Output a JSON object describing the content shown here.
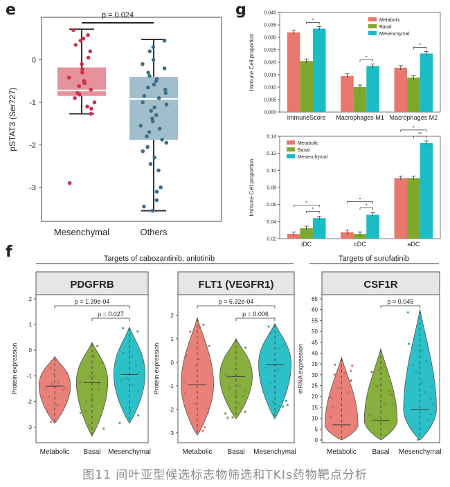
{
  "panels": {
    "e": "e",
    "g": "g",
    "f": "f"
  },
  "caption": "图11 间叶亚型候选标志物筛选和TKIs药物靶点分析",
  "colors": {
    "metabolic": "#e8776d",
    "basal": "#7ea82d",
    "mesenchymal": "#1bbcc4",
    "mes_box": "#e3868f",
    "others_box": "#96b7c6",
    "mes_pt": "#c8334a",
    "others_pt": "#3c6e8c"
  },
  "chart_data": [
    {
      "id": "e",
      "type": "box",
      "ylabel": "pSTAT3 (Ser727)",
      "categories": [
        "Mesenchymal",
        "Others"
      ],
      "ylim": [
        -3.8,
        1.0
      ],
      "yticks": [
        0,
        -1,
        -2,
        -3
      ],
      "boxes": [
        {
          "name": "Mesenchymal",
          "q1": -0.85,
          "median": -0.72,
          "q3": -0.18,
          "whisker_low": -1.27,
          "whisker_high": 0.72,
          "points": [
            0.7,
            0.58,
            0.5,
            0.45,
            0.35,
            0.2,
            0.05,
            -0.1,
            -0.22,
            -0.3,
            -0.42,
            -0.5,
            -0.55,
            -0.62,
            -0.7,
            -0.78,
            -0.82,
            -0.9,
            -1.0,
            -1.1,
            -1.15,
            -1.27,
            -2.9
          ]
        },
        {
          "name": "Others",
          "q1": -1.88,
          "median": -0.92,
          "q3": -0.4,
          "whisker_low": -3.55,
          "whisker_high": 0.48,
          "points": [
            0.45,
            0.3,
            0.2,
            0.0,
            -0.1,
            -0.2,
            -0.3,
            -0.38,
            -0.45,
            -0.5,
            -0.58,
            -0.65,
            -0.7,
            -0.78,
            -0.85,
            -0.9,
            -1.0,
            -1.05,
            -1.12,
            -1.2,
            -1.3,
            -1.38,
            -1.45,
            -1.55,
            -1.62,
            -1.7,
            -1.8,
            -1.88,
            -1.95,
            -2.05,
            -2.15,
            -2.3,
            -2.45,
            -2.6,
            -3.0,
            -3.1,
            -3.3,
            -3.45,
            -3.55
          ]
        }
      ],
      "annotation": "p = 0.024"
    },
    {
      "id": "g-top",
      "type": "bar",
      "ylabel": "Immune Cell proportion",
      "categories": [
        "ImmuneScore",
        "Macrophages M1",
        "Macrophages M2"
      ],
      "ylim": [
        0,
        0.04
      ],
      "yticks": [
        "0.000",
        "0.005",
        "0.010",
        "0.015",
        "0.020",
        "0.025",
        "0.030",
        "0.035",
        "0.040"
      ],
      "series": [
        {
          "name": "Metabolic",
          "values": [
            0.032,
            0.0145,
            0.0178
          ]
        },
        {
          "name": "Basal",
          "values": [
            0.0205,
            0.01,
            0.0138
          ]
        },
        {
          "name": "Mesenchymal",
          "values": [
            0.0335,
            0.0185,
            0.0235
          ]
        }
      ],
      "sig": [
        "*",
        "*",
        "*"
      ]
    },
    {
      "id": "g-bottom",
      "type": "bar",
      "ylabel": "Immune Cell proportion",
      "categories": [
        "iDC",
        "cDC",
        "aDC"
      ],
      "ylim": [
        0.02,
        0.14
      ],
      "yticks": [
        "0.02",
        "0.04",
        "0.06",
        "0.08",
        "0.10",
        "0.12",
        "0.14"
      ],
      "series": [
        {
          "name": "Metabolic",
          "values": [
            0.0255,
            0.0275,
            0.091
          ]
        },
        {
          "name": "Basal",
          "values": [
            0.0322,
            0.0255,
            0.091
          ]
        },
        {
          "name": "Mesenchymal",
          "values": [
            0.044,
            0.048,
            0.132
          ]
        }
      ],
      "sig": [
        "*",
        "*",
        "*",
        "*",
        "*",
        "**"
      ]
    },
    {
      "id": "f",
      "type": "violin",
      "group_title_left": "Targets of cabozantinib, anlotinib",
      "group_title_right": "Targets of surufatinib",
      "panels": [
        {
          "title": "PDGFRB",
          "ylabel": "Protein expression",
          "ylim": [
            -3.5,
            2.0
          ],
          "yticks": [
            "2",
            "1",
            "0",
            "-1",
            "-2",
            "-3"
          ],
          "categories": [
            "Metabolic",
            "Basal",
            "Mesenchymal"
          ],
          "p_top": "p = 1.39e-04",
          "p_bottom": "p = 0.027",
          "violins": [
            {
              "min": -2.85,
              "max": -0.25,
              "median": -1.4,
              "q1": -1.85,
              "q3": -0.9
            },
            {
              "min": -3.35,
              "max": 0.3,
              "median": -1.25,
              "q1": -1.8,
              "q3": -0.6
            },
            {
              "min": -2.85,
              "max": 0.9,
              "median": -0.95,
              "q1": -1.45,
              "q3": -0.4
            }
          ]
        },
        {
          "title": "FLT1 (VEGFR1)",
          "ylabel": "Protein expression",
          "ylim": [
            -3.3,
            2.7
          ],
          "yticks": [
            "2",
            "1",
            "0",
            "-1",
            "-2",
            "-3"
          ],
          "categories": [
            "Metabolic",
            "Basal",
            "Mesenchymal"
          ],
          "p_top": "p = 6.32e-04",
          "p_bottom": "p = 0.006",
          "violins": [
            {
              "min": -3.1,
              "max": 1.9,
              "median": -0.95,
              "q1": -1.6,
              "q3": -0.3
            },
            {
              "min": -2.4,
              "max": 1.0,
              "median": -0.6,
              "q1": -1.1,
              "q3": -0.1
            },
            {
              "min": -2.4,
              "max": 1.65,
              "median": -0.1,
              "q1": -0.6,
              "q3": 0.4
            }
          ]
        },
        {
          "title": "CSF1R",
          "ylabel": "mRNA expression",
          "ylim": [
            0,
            65
          ],
          "yticks": [
            "65",
            "60",
            "55",
            "50",
            "45",
            "40",
            "35",
            "30",
            "25",
            "20",
            "15",
            "10",
            "5",
            "0"
          ],
          "categories": [
            "Metabolic",
            "Basal",
            "Mesenchymal"
          ],
          "p_bottom": "p = 0.045",
          "violins": [
            {
              "min": 0,
              "max": 38,
              "median": 7,
              "q1": 3,
              "q3": 12
            },
            {
              "min": 0,
              "max": 42,
              "median": 9,
              "q1": 4,
              "q3": 15
            },
            {
              "min": 0,
              "max": 60,
              "median": 14,
              "q1": 7,
              "q3": 22
            }
          ]
        }
      ]
    }
  ]
}
